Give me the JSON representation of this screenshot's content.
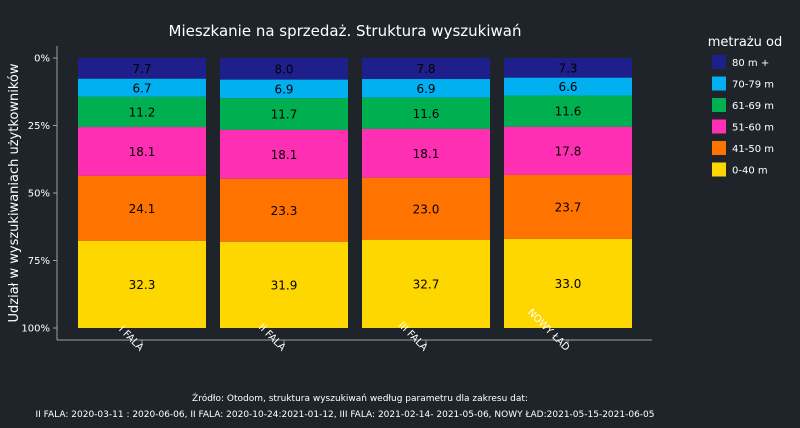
{
  "chart_data": {
    "type": "bar",
    "stacked": true,
    "title": "Mieszkanie na sprzedaż. Struktura wyszukiwań",
    "xlabel": "",
    "ylabel": "Udział w wyszukiwaniach użytkowników",
    "ylim": [
      0,
      100
    ],
    "y_inverted": true,
    "y_ticks": [
      "0%",
      "25%",
      "50%",
      "75%",
      "100%"
    ],
    "categories": [
      "I FALA",
      "II FALA",
      "III FALA",
      "NOWY ŁAD"
    ],
    "legend_title": "metrażu od",
    "legend_position": "right",
    "series": [
      {
        "name": "80 m +",
        "color": "#1f1f8c",
        "values": [
          7.7,
          8.0,
          7.8,
          7.3
        ]
      },
      {
        "name": "70-79 m",
        "color": "#00b0f0",
        "values": [
          6.7,
          6.9,
          6.9,
          6.6
        ]
      },
      {
        "name": "61-69 m",
        "color": "#00b050",
        "values": [
          11.2,
          11.7,
          11.6,
          11.6
        ]
      },
      {
        "name": "51-60 m",
        "color": "#ff2fb3",
        "values": [
          18.1,
          18.1,
          18.1,
          17.8
        ]
      },
      {
        "name": "41-50 m",
        "color": "#ff7300",
        "values": [
          24.1,
          23.3,
          23.0,
          23.7
        ]
      },
      {
        "name": "0-40 m",
        "color": "#ffd700",
        "values": [
          32.3,
          31.9,
          32.7,
          33.0
        ]
      }
    ]
  },
  "source_line1": "Źródło: Otodom, struktura wyszukiwań według parametru dla zakresu dat:",
  "source_line2": "II FALA: 2020-03-11 : 2020-06-06, II FALA: 2020-10-24:2021-01-12, III FALA: 2021-02-14- 2021-05-06, NOWY ŁAD:2021-05-15-2021-06-05"
}
